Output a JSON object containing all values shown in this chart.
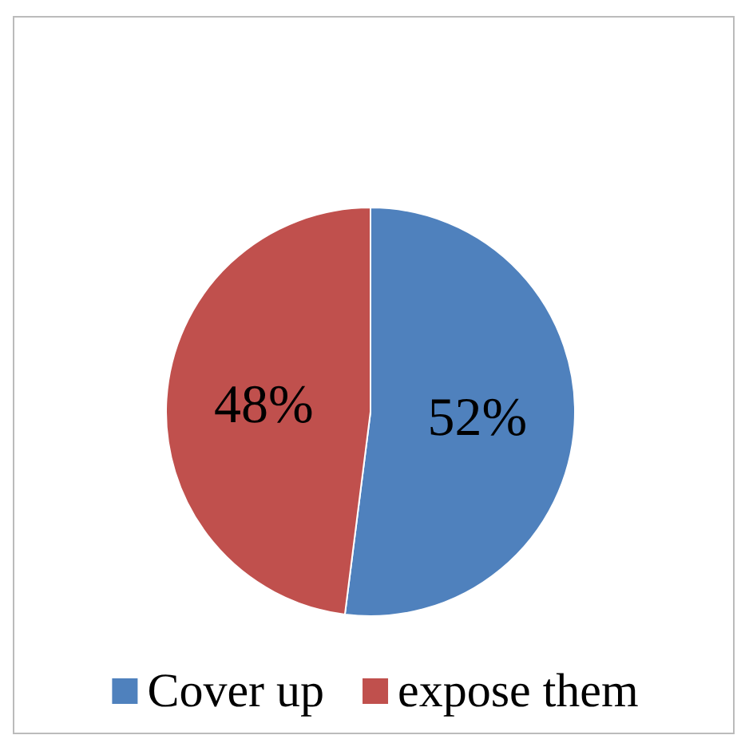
{
  "chart_data": {
    "type": "pie",
    "categories": [
      "Cover up",
      "expose them"
    ],
    "values": [
      52,
      48
    ],
    "value_labels": [
      "52%",
      "48%"
    ],
    "colors": [
      "#4f81bd",
      "#c0504d"
    ],
    "legend": "bottom"
  }
}
